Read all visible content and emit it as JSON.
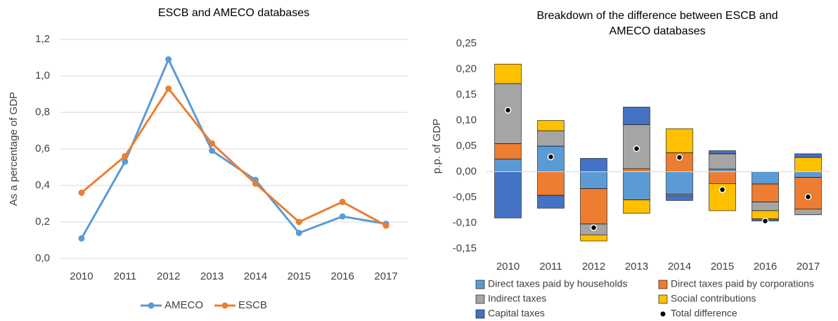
{
  "chart_data": [
    {
      "type": "line",
      "title": "ESCB and AMECO databases",
      "y_label": "As a percentage of GDP",
      "categories": [
        "2010",
        "2011",
        "2012",
        "2013",
        "2014",
        "2015",
        "2016",
        "2017"
      ],
      "series": [
        {
          "name": "AMECO",
          "color": "#5b9bd5",
          "values": [
            0.11,
            0.53,
            1.09,
            0.59,
            0.43,
            0.14,
            0.23,
            0.19
          ]
        },
        {
          "name": "ESCB",
          "color": "#ed7d31",
          "values": [
            0.36,
            0.56,
            0.93,
            0.63,
            0.41,
            0.2,
            0.31,
            0.18
          ]
        }
      ],
      "ylim": [
        0,
        1.2
      ],
      "yticks": [
        {
          "value": 0,
          "label": "0,0"
        },
        {
          "value": 0.2,
          "label": "0,2"
        },
        {
          "value": 0.4,
          "label": "0,4"
        },
        {
          "value": 0.6,
          "label": "0,6"
        },
        {
          "value": 0.8,
          "label": "0,8"
        },
        {
          "value": 1.0,
          "label": "1,0"
        },
        {
          "value": 1.2,
          "label": "1,2"
        }
      ],
      "grid": true,
      "legend": "bottom"
    },
    {
      "type": "stacked_bar",
      "title": "Breakdown of the difference between ESCB and AMECO databases",
      "y_label": "p.p. of GDP",
      "categories": [
        "2010",
        "2011",
        "2012",
        "2013",
        "2014",
        "2015",
        "2016",
        "2017"
      ],
      "series": [
        {
          "name": "Direct taxes paid by households",
          "color": "#5b9bd5",
          "values": [
            0.025,
            0.05,
            -0.033,
            -0.055,
            -0.044,
            0.005,
            -0.024,
            -0.011
          ]
        },
        {
          "name": "Direct taxes paid by corporations",
          "color": "#ed7d31",
          "values": [
            0.03,
            -0.046,
            -0.069,
            0.006,
            0.037,
            -0.023,
            -0.035,
            -0.062
          ]
        },
        {
          "name": "Indirect taxes",
          "color": "#a5a5a5",
          "values": [
            0.117,
            0.03,
            -0.021,
            0.086,
            -0.003,
            0.03,
            -0.017,
            -0.011
          ]
        },
        {
          "name": "Social contributions",
          "color": "#ffc000",
          "values": [
            0.038,
            0.02,
            -0.012,
            -0.026,
            0.047,
            -0.053,
            -0.016,
            0.028
          ]
        },
        {
          "name": "Capital taxes",
          "color": "#4472c4",
          "values": [
            -0.09,
            -0.025,
            0.026,
            0.034,
            -0.009,
            0.006,
            -0.004,
            0.007
          ]
        }
      ],
      "total": {
        "name": "Total difference",
        "color": "#000000",
        "values": [
          0.12,
          0.029,
          -0.109,
          0.045,
          0.028,
          -0.035,
          -0.096,
          -0.049
        ]
      },
      "ylim": [
        -0.15,
        0.25
      ],
      "yticks": [
        {
          "value": -0.15,
          "label": "-0,15"
        },
        {
          "value": -0.1,
          "label": "-0,10"
        },
        {
          "value": -0.05,
          "label": "-0,05"
        },
        {
          "value": 0,
          "label": "0,00"
        },
        {
          "value": 0.05,
          "label": "0,05"
        },
        {
          "value": 0.1,
          "label": "0,10"
        },
        {
          "value": 0.15,
          "label": "0,15"
        },
        {
          "value": 0.2,
          "label": "0,20"
        },
        {
          "value": 0.25,
          "label": "0,25"
        }
      ],
      "grid": false,
      "legend": "bottom"
    }
  ]
}
